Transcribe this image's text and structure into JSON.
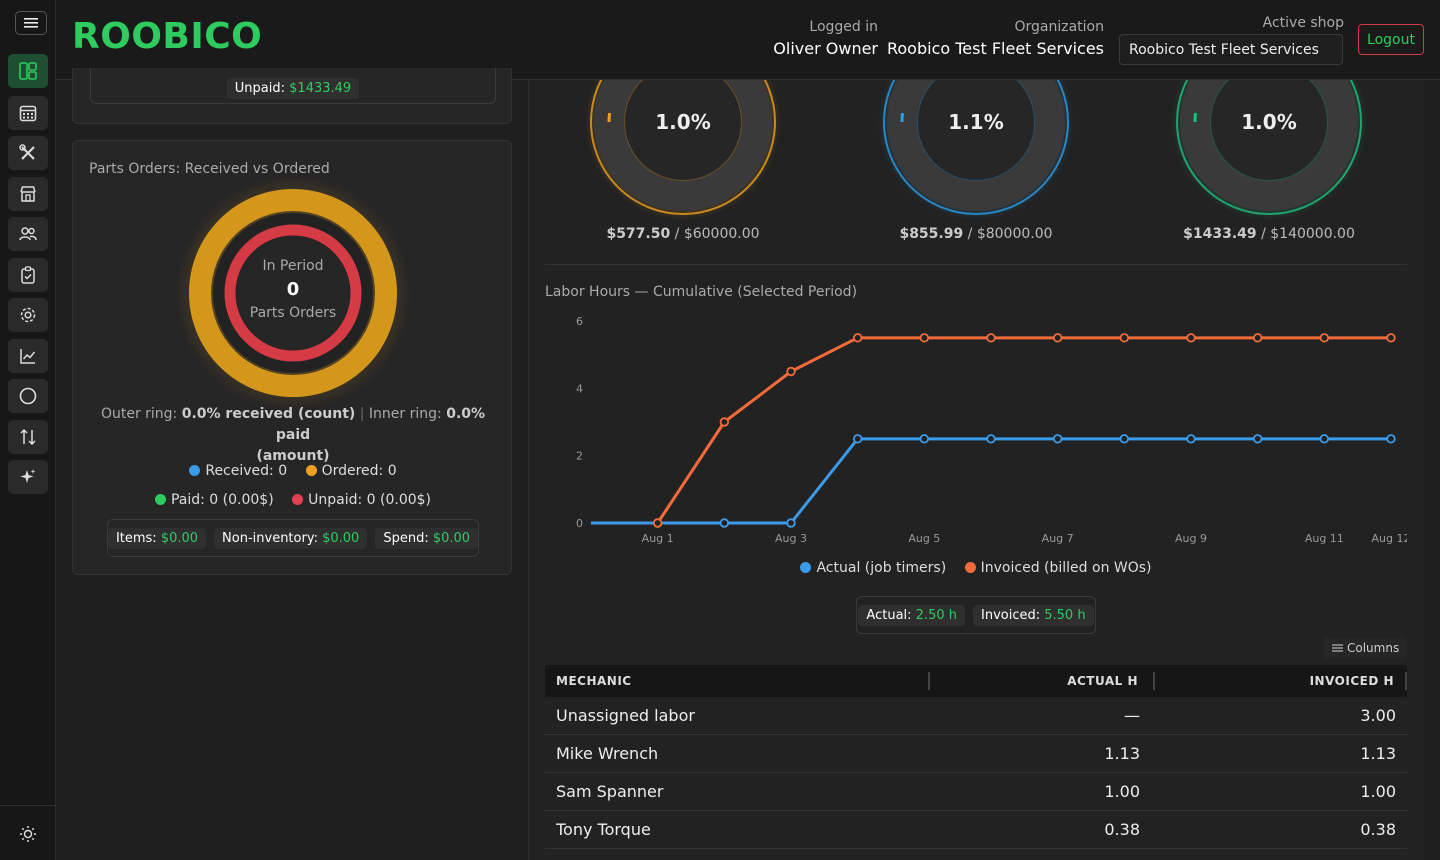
{
  "header": {
    "logo": "ROOBICO",
    "logged_in_label": "Logged in",
    "logged_in_value": "Oliver Owner",
    "org_label": "Organization",
    "org_value": "Roobico Test Fleet Services",
    "shop_label": "Active shop",
    "shop_value": "Roobico Test Fleet Services",
    "logout": "Logout"
  },
  "sidebar": {
    "icons": [
      "dashboard-icon",
      "calendar-icon",
      "tools-icon",
      "shop-icon",
      "users-icon",
      "clipboard-icon",
      "gear-icon",
      "chart-icon",
      "circle-icon",
      "transfer-icon",
      "sparkle-icon"
    ],
    "theme_icon": "sun-icon"
  },
  "top_card": {
    "unpaid_label": "Unpaid:",
    "unpaid_value": "$1433.49"
  },
  "parts": {
    "title": "Parts Orders: Received vs Ordered",
    "center_top": "In Period",
    "center_value": "0",
    "center_bottom": "Parts Orders",
    "outer_label": "Outer ring:",
    "outer_value": "0.0% received (count)",
    "inner_label": "Inner ring:",
    "inner_value": "0.0% paid",
    "inner_suffix": "(amount)",
    "legend": {
      "received": "Received: 0",
      "ordered": "Ordered: 0",
      "paid": "Paid: 0 (0.00$)",
      "unpaid": "Unpaid: 0 (0.00$)"
    },
    "pills": {
      "items_label": "Items:",
      "items_value": "$0.00",
      "noninv_label": "Non-inventory:",
      "noninv_value": "$0.00",
      "spend_label": "Spend:",
      "spend_value": "$0.00"
    },
    "colors": {
      "outer": "#d4971c",
      "inner": "#d43b44",
      "received": "#3b9be8",
      "ordered": "#f0a020",
      "paid": "#2ecc5e",
      "unpaid": "#e04050"
    }
  },
  "gauges": [
    {
      "percent": "1.0%",
      "fraction": 0.0096,
      "amount": "$577.50",
      "target": "$60000.00",
      "color": "#f0a020"
    },
    {
      "percent": "1.1%",
      "fraction": 0.0107,
      "amount": "$855.99",
      "target": "$80000.00",
      "color": "#2a9ee8"
    },
    {
      "percent": "1.0%",
      "fraction": 0.0102,
      "amount": "$1433.49",
      "target": "$140000.00",
      "color": "#20c080"
    }
  ],
  "chart_data": {
    "type": "line",
    "title": "Labor Hours — Cumulative (Selected Period)",
    "x": [
      "Jul 31",
      "Aug 1",
      "Aug 2",
      "Aug 3",
      "Aug 4",
      "Aug 5",
      "Aug 6",
      "Aug 7",
      "Aug 8",
      "Aug 9",
      "Aug 10",
      "Aug 11",
      "Aug 12"
    ],
    "x_tick_labels": [
      "Aug 1",
      "Aug 3",
      "Aug 5",
      "Aug 7",
      "Aug 9",
      "Aug 11",
      "Aug 12"
    ],
    "y_ticks": [
      "0",
      "2",
      "4",
      "6"
    ],
    "ylim": [
      0,
      6
    ],
    "series": [
      {
        "name": "Actual (job timers)",
        "color": "#3b9be8",
        "values": [
          0,
          0,
          0,
          0,
          2.5,
          2.5,
          2.5,
          2.5,
          2.5,
          2.5,
          2.5,
          2.5,
          2.5
        ]
      },
      {
        "name": "Invoiced (billed on WOs)",
        "color": "#f26b3a",
        "values": [
          0,
          0,
          3.0,
          4.5,
          5.5,
          5.5,
          5.5,
          5.5,
          5.5,
          5.5,
          5.5,
          5.5,
          5.5
        ]
      }
    ],
    "legend": "bottom",
    "grid": false
  },
  "totals": {
    "actual_label": "Actual:",
    "actual_value": "2.50 h",
    "invoiced_label": "Invoiced:",
    "invoiced_value": "5.50 h"
  },
  "table": {
    "columns_btn": "Columns",
    "headers": [
      "MECHANIC",
      "ACTUAL H",
      "INVOICED H"
    ],
    "rows": [
      {
        "name": "Unassigned labor",
        "actual": "—",
        "invoiced": "3.00"
      },
      {
        "name": "Mike Wrench",
        "actual": "1.13",
        "invoiced": "1.13"
      },
      {
        "name": "Sam Spanner",
        "actual": "1.00",
        "invoiced": "1.00"
      },
      {
        "name": "Tony Torque",
        "actual": "0.38",
        "invoiced": "0.38"
      }
    ]
  }
}
